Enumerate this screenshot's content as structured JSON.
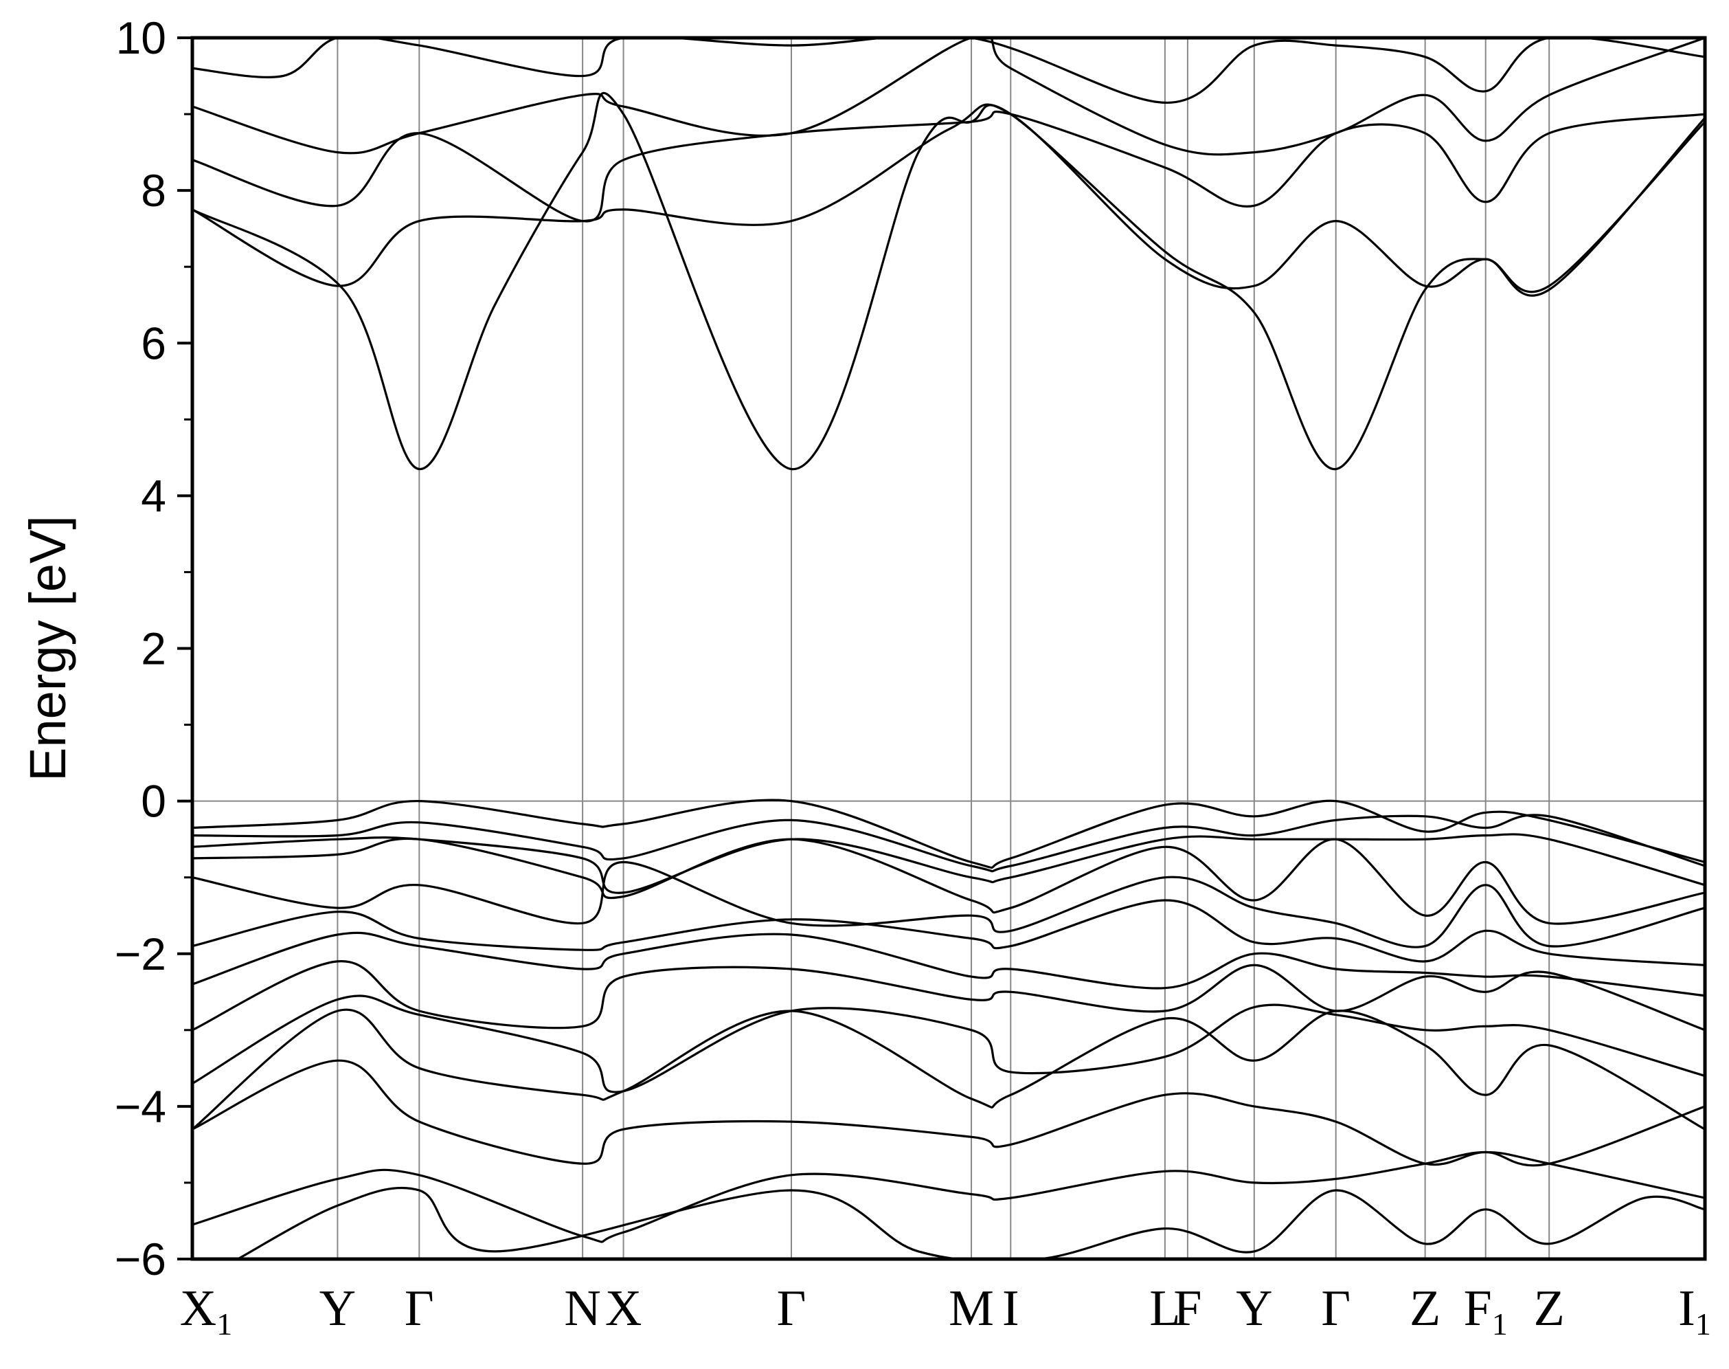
{
  "chart_data": {
    "type": "line",
    "title": "",
    "xlabel": "",
    "ylabel": "Energy [eV]",
    "ylim": [
      -6,
      10
    ],
    "yticks": [
      "10",
      "8",
      "6",
      "4",
      "2",
      "0",
      "−2",
      "−4",
      "−6"
    ],
    "ytick_values": [
      10,
      8,
      6,
      4,
      2,
      0,
      -2,
      -4,
      -6
    ],
    "fermi_level": 0,
    "k_path": [
      {
        "label": "X",
        "sub": "1",
        "k": 0.0
      },
      {
        "label": "Y",
        "sub": "",
        "k": 0.096
      },
      {
        "label": "Γ",
        "sub": "",
        "k": 0.15
      },
      {
        "label": "N",
        "sub": "",
        "k": 0.258
      },
      {
        "label": "X",
        "sub": "",
        "k": 0.285
      },
      {
        "label": "Γ",
        "sub": "",
        "k": 0.396
      },
      {
        "label": "M",
        "sub": "",
        "k": 0.515
      },
      {
        "label": "I",
        "sub": "",
        "k": 0.541
      },
      {
        "label": "L",
        "sub": "",
        "k": 0.643
      },
      {
        "label": "F",
        "sub": "",
        "k": 0.658
      },
      {
        "label": "Y",
        "sub": "",
        "k": 0.702
      },
      {
        "label": "Γ",
        "sub": "",
        "k": 0.756
      },
      {
        "label": "Z",
        "sub": "",
        "k": 0.815
      },
      {
        "label": "F",
        "sub": "1",
        "k": 0.855
      },
      {
        "label": "Z",
        "sub": "",
        "k": 0.897
      },
      {
        "label": "I",
        "sub": "1",
        "k": 1.0
      }
    ],
    "series": [
      {
        "values": [
          [
            0,
            7.75
          ],
          [
            0.1,
            6.7
          ],
          [
            0.15,
            4.35
          ],
          [
            0.2,
            6.5
          ],
          [
            0.258,
            8.5
          ],
          [
            0.285,
            9.0
          ],
          [
            0.396,
            4.35
          ],
          [
            0.48,
            8.5
          ],
          [
            0.515,
            8.9
          ],
          [
            0.541,
            9.0
          ],
          [
            0.643,
            7.2
          ],
          [
            0.702,
            6.4
          ],
          [
            0.756,
            4.35
          ],
          [
            0.815,
            6.7
          ],
          [
            0.855,
            7.1
          ],
          [
            0.897,
            6.7
          ],
          [
            1.0,
            8.95
          ]
        ]
      },
      {
        "values": [
          [
            0,
            7.75
          ],
          [
            0.096,
            6.75
          ],
          [
            0.15,
            7.6
          ],
          [
            0.258,
            7.6
          ],
          [
            0.285,
            7.75
          ],
          [
            0.396,
            7.6
          ],
          [
            0.5,
            8.8
          ],
          [
            0.541,
            9.0
          ],
          [
            0.643,
            7.1
          ],
          [
            0.702,
            6.75
          ],
          [
            0.756,
            7.6
          ],
          [
            0.815,
            6.75
          ],
          [
            0.855,
            7.1
          ],
          [
            0.897,
            6.75
          ],
          [
            1.0,
            8.9
          ]
        ]
      },
      {
        "values": [
          [
            0,
            8.4
          ],
          [
            0.096,
            7.8
          ],
          [
            0.15,
            8.75
          ],
          [
            0.258,
            7.6
          ],
          [
            0.285,
            8.4
          ],
          [
            0.396,
            8.75
          ],
          [
            0.515,
            8.9
          ],
          [
            0.541,
            9.0
          ],
          [
            0.643,
            8.3
          ],
          [
            0.702,
            7.8
          ],
          [
            0.756,
            8.75
          ],
          [
            0.815,
            8.75
          ],
          [
            0.855,
            7.85
          ],
          [
            0.897,
            8.75
          ],
          [
            1.0,
            9.0
          ]
        ]
      },
      {
        "values": [
          [
            0,
            9.1
          ],
          [
            0.096,
            8.5
          ],
          [
            0.15,
            8.75
          ],
          [
            0.258,
            9.25
          ],
          [
            0.285,
            9.1
          ],
          [
            0.396,
            8.75
          ],
          [
            0.515,
            10.0
          ],
          [
            0.541,
            9.6
          ],
          [
            0.643,
            8.6
          ],
          [
            0.702,
            8.5
          ],
          [
            0.756,
            8.75
          ],
          [
            0.815,
            9.25
          ],
          [
            0.855,
            8.65
          ],
          [
            0.897,
            9.25
          ],
          [
            1.0,
            10.0
          ]
        ]
      },
      {
        "values": [
          [
            0,
            9.6
          ],
          [
            0.06,
            9.5
          ],
          [
            0.096,
            10.0
          ],
          [
            0.15,
            9.9
          ],
          [
            0.258,
            9.5
          ],
          [
            0.285,
            10.0
          ],
          [
            0.396,
            9.9
          ],
          [
            0.515,
            10.0
          ],
          [
            0.643,
            9.15
          ],
          [
            0.702,
            9.9
          ],
          [
            0.756,
            9.9
          ],
          [
            0.815,
            9.75
          ],
          [
            0.855,
            9.3
          ],
          [
            0.897,
            10.0
          ],
          [
            1.0,
            9.75
          ]
        ]
      },
      {
        "values": [
          [
            0,
            -0.35
          ],
          [
            0.096,
            -0.25
          ],
          [
            0.15,
            0.0
          ],
          [
            0.258,
            -0.3
          ],
          [
            0.285,
            -0.3
          ],
          [
            0.396,
            0.0
          ],
          [
            0.515,
            -0.8
          ],
          [
            0.541,
            -0.75
          ],
          [
            0.643,
            -0.05
          ],
          [
            0.702,
            -0.2
          ],
          [
            0.756,
            0.0
          ],
          [
            0.815,
            -0.4
          ],
          [
            0.855,
            -0.15
          ],
          [
            0.897,
            -0.25
          ],
          [
            1.0,
            -0.8
          ]
        ]
      },
      {
        "values": [
          [
            0,
            -0.45
          ],
          [
            0.096,
            -0.45
          ],
          [
            0.15,
            -0.28
          ],
          [
            0.258,
            -0.6
          ],
          [
            0.285,
            -0.75
          ],
          [
            0.396,
            -0.25
          ],
          [
            0.515,
            -0.85
          ],
          [
            0.541,
            -0.85
          ],
          [
            0.643,
            -0.35
          ],
          [
            0.702,
            -0.45
          ],
          [
            0.756,
            -0.25
          ],
          [
            0.815,
            -0.2
          ],
          [
            0.855,
            -0.35
          ],
          [
            0.897,
            -0.2
          ],
          [
            1.0,
            -0.85
          ]
        ]
      },
      {
        "values": [
          [
            0,
            -0.6
          ],
          [
            0.096,
            -0.5
          ],
          [
            0.15,
            -0.5
          ],
          [
            0.258,
            -0.75
          ],
          [
            0.285,
            -1.2
          ],
          [
            0.396,
            -0.5
          ],
          [
            0.515,
            -1.0
          ],
          [
            0.541,
            -1.0
          ],
          [
            0.643,
            -0.5
          ],
          [
            0.702,
            -0.5
          ],
          [
            0.756,
            -0.5
          ],
          [
            0.815,
            -0.5
          ],
          [
            0.855,
            -0.45
          ],
          [
            0.897,
            -0.5
          ],
          [
            1.0,
            -1.1
          ]
        ]
      },
      {
        "values": [
          [
            0,
            -0.75
          ],
          [
            0.096,
            -0.7
          ],
          [
            0.15,
            -0.5
          ],
          [
            0.258,
            -1.0
          ],
          [
            0.285,
            -1.25
          ],
          [
            0.396,
            -0.5
          ],
          [
            0.515,
            -1.3
          ],
          [
            0.541,
            -1.4
          ],
          [
            0.643,
            -0.6
          ],
          [
            0.702,
            -1.3
          ],
          [
            0.756,
            -0.5
          ],
          [
            0.815,
            -1.5
          ],
          [
            0.855,
            -0.8
          ],
          [
            0.897,
            -1.6
          ],
          [
            1.0,
            -1.2
          ]
        ]
      },
      {
        "values": [
          [
            0,
            -1.0
          ],
          [
            0.096,
            -1.4
          ],
          [
            0.15,
            -1.1
          ],
          [
            0.258,
            -1.6
          ],
          [
            0.285,
            -0.8
          ],
          [
            0.396,
            -1.6
          ],
          [
            0.515,
            -1.5
          ],
          [
            0.541,
            -1.7
          ],
          [
            0.643,
            -1.0
          ],
          [
            0.702,
            -1.4
          ],
          [
            0.756,
            -1.6
          ],
          [
            0.815,
            -1.9
          ],
          [
            0.855,
            -1.1
          ],
          [
            0.897,
            -1.9
          ],
          [
            1.0,
            -1.4
          ]
        ]
      },
      {
        "values": [
          [
            0,
            -1.9
          ],
          [
            0.096,
            -1.45
          ],
          [
            0.15,
            -1.8
          ],
          [
            0.258,
            -1.95
          ],
          [
            0.285,
            -1.85
          ],
          [
            0.396,
            -1.55
          ],
          [
            0.515,
            -1.8
          ],
          [
            0.541,
            -1.9
          ],
          [
            0.643,
            -1.3
          ],
          [
            0.702,
            -1.85
          ],
          [
            0.756,
            -1.8
          ],
          [
            0.815,
            -2.1
          ],
          [
            0.855,
            -1.7
          ],
          [
            0.897,
            -2.0
          ],
          [
            1.0,
            -2.15
          ]
        ]
      },
      {
        "values": [
          [
            0,
            -2.4
          ],
          [
            0.096,
            -1.75
          ],
          [
            0.15,
            -1.9
          ],
          [
            0.258,
            -2.2
          ],
          [
            0.285,
            -2.0
          ],
          [
            0.396,
            -1.75
          ],
          [
            0.515,
            -2.3
          ],
          [
            0.541,
            -2.2
          ],
          [
            0.643,
            -2.45
          ],
          [
            0.702,
            -2.0
          ],
          [
            0.756,
            -2.2
          ],
          [
            0.815,
            -2.25
          ],
          [
            0.855,
            -2.3
          ],
          [
            0.897,
            -2.3
          ],
          [
            1.0,
            -2.55
          ]
        ]
      },
      {
        "values": [
          [
            0,
            -3.0
          ],
          [
            0.096,
            -2.1
          ],
          [
            0.15,
            -2.75
          ],
          [
            0.258,
            -2.95
          ],
          [
            0.285,
            -2.3
          ],
          [
            0.396,
            -2.2
          ],
          [
            0.515,
            -2.6
          ],
          [
            0.541,
            -2.5
          ],
          [
            0.643,
            -2.75
          ],
          [
            0.702,
            -2.15
          ],
          [
            0.756,
            -2.75
          ],
          [
            0.815,
            -2.3
          ],
          [
            0.855,
            -2.5
          ],
          [
            0.897,
            -2.25
          ],
          [
            1.0,
            -3.0
          ]
        ]
      },
      {
        "values": [
          [
            0,
            -3.7
          ],
          [
            0.096,
            -2.6
          ],
          [
            0.15,
            -2.8
          ],
          [
            0.258,
            -3.3
          ],
          [
            0.285,
            -3.8
          ],
          [
            0.396,
            -2.75
          ],
          [
            0.515,
            -3.0
          ],
          [
            0.541,
            -3.55
          ],
          [
            0.643,
            -3.35
          ],
          [
            0.702,
            -2.7
          ],
          [
            0.756,
            -2.8
          ],
          [
            0.815,
            -3.0
          ],
          [
            0.855,
            -2.95
          ],
          [
            0.897,
            -3.0
          ],
          [
            1.0,
            -3.6
          ]
        ]
      },
      {
        "values": [
          [
            0,
            -4.3
          ],
          [
            0.096,
            -2.75
          ],
          [
            0.15,
            -3.5
          ],
          [
            0.258,
            -3.85
          ],
          [
            0.285,
            -3.8
          ],
          [
            0.396,
            -2.75
          ],
          [
            0.515,
            -3.9
          ],
          [
            0.541,
            -3.85
          ],
          [
            0.643,
            -2.85
          ],
          [
            0.702,
            -3.4
          ],
          [
            0.756,
            -2.75
          ],
          [
            0.815,
            -3.2
          ],
          [
            0.855,
            -3.85
          ],
          [
            0.897,
            -3.2
          ],
          [
            1.0,
            -4.3
          ]
        ]
      },
      {
        "values": [
          [
            0,
            -4.3
          ],
          [
            0.096,
            -3.4
          ],
          [
            0.15,
            -4.2
          ],
          [
            0.258,
            -4.75
          ],
          [
            0.285,
            -4.3
          ],
          [
            0.396,
            -4.2
          ],
          [
            0.515,
            -4.4
          ],
          [
            0.541,
            -4.5
          ],
          [
            0.643,
            -3.85
          ],
          [
            0.702,
            -4.0
          ],
          [
            0.756,
            -4.2
          ],
          [
            0.815,
            -4.75
          ],
          [
            0.855,
            -4.6
          ],
          [
            0.897,
            -4.75
          ],
          [
            1.0,
            -4.0
          ]
        ]
      },
      {
        "values": [
          [
            0,
            -5.55
          ],
          [
            0.096,
            -4.95
          ],
          [
            0.15,
            -4.9
          ],
          [
            0.258,
            -5.7
          ],
          [
            0.285,
            -5.65
          ],
          [
            0.396,
            -4.9
          ],
          [
            0.515,
            -5.15
          ],
          [
            0.541,
            -5.2
          ],
          [
            0.643,
            -4.85
          ],
          [
            0.702,
            -5.0
          ],
          [
            0.756,
            -4.95
          ],
          [
            0.815,
            -4.75
          ],
          [
            0.855,
            -4.6
          ],
          [
            0.897,
            -4.75
          ],
          [
            1.0,
            -5.2
          ]
        ]
      },
      {
        "values": [
          [
            0.03,
            -6.0
          ],
          [
            0.096,
            -5.3
          ],
          [
            0.15,
            -5.1
          ],
          [
            0.2,
            -5.9
          ],
          [
            0.396,
            -5.1
          ],
          [
            0.48,
            -5.9
          ],
          [
            0.56,
            -6.0
          ],
          [
            0.643,
            -5.6
          ],
          [
            0.702,
            -5.9
          ],
          [
            0.756,
            -5.1
          ],
          [
            0.815,
            -5.8
          ],
          [
            0.855,
            -5.35
          ],
          [
            0.897,
            -5.8
          ],
          [
            0.96,
            -5.2
          ],
          [
            1.0,
            -5.35
          ]
        ]
      }
    ]
  }
}
